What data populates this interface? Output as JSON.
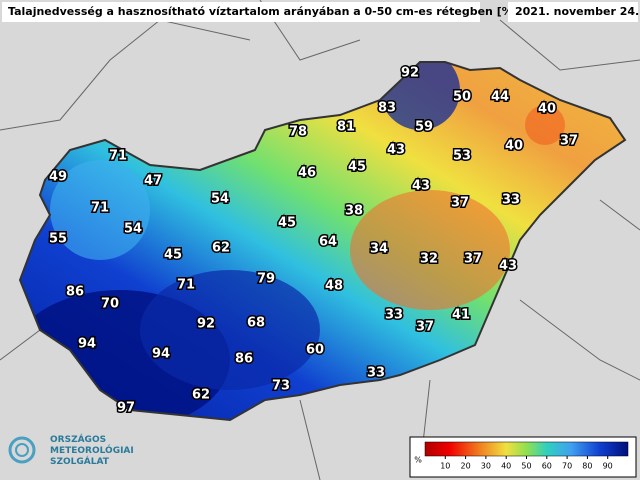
{
  "header": {
    "title": "Talajnedvesség a hasznosítható víztartalom arányában a 0-50 cm-es rétegben [%]",
    "date": "2021. november 24."
  },
  "labels": [
    {
      "value": 92
    },
    {
      "value": 50
    },
    {
      "value": 44
    },
    {
      "value": 40
    },
    {
      "value": 83
    },
    {
      "value": 78
    },
    {
      "value": 81
    },
    {
      "value": 59
    },
    {
      "value": 40
    },
    {
      "value": 37
    },
    {
      "value": 43
    },
    {
      "value": 53
    },
    {
      "value": 46
    },
    {
      "value": 45
    },
    {
      "value": 49
    },
    {
      "value": 71
    },
    {
      "value": 47
    },
    {
      "value": 43
    },
    {
      "value": 54
    },
    {
      "value": 38
    },
    {
      "value": 37
    },
    {
      "value": 33
    },
    {
      "value": 71
    },
    {
      "value": 45
    },
    {
      "value": 54
    },
    {
      "value": 55
    },
    {
      "value": 64
    },
    {
      "value": 62
    },
    {
      "value": 34
    },
    {
      "value": 32
    },
    {
      "value": 37
    },
    {
      "value": 43
    },
    {
      "value": 45
    },
    {
      "value": 79
    },
    {
      "value": 71
    },
    {
      "value": 48
    },
    {
      "value": 86
    },
    {
      "value": 70
    },
    {
      "value": 33
    },
    {
      "value": 41
    },
    {
      "value": 37
    },
    {
      "value": 92
    },
    {
      "value": 68
    },
    {
      "value": 94
    },
    {
      "value": 94
    },
    {
      "value": 86
    },
    {
      "value": 60
    },
    {
      "value": 73
    },
    {
      "value": 33
    },
    {
      "value": 62
    },
    {
      "value": 97
    }
  ],
  "legend": {
    "unit": "%",
    "lim": [
      0,
      100
    ],
    "ticks": [
      10,
      20,
      30,
      40,
      50,
      60,
      70,
      80,
      90
    ]
  },
  "logo": {
    "lines": [
      "ORSZÁGOS",
      "METEOROLÓGIAI",
      "SZOLGÁLAT"
    ]
  }
}
